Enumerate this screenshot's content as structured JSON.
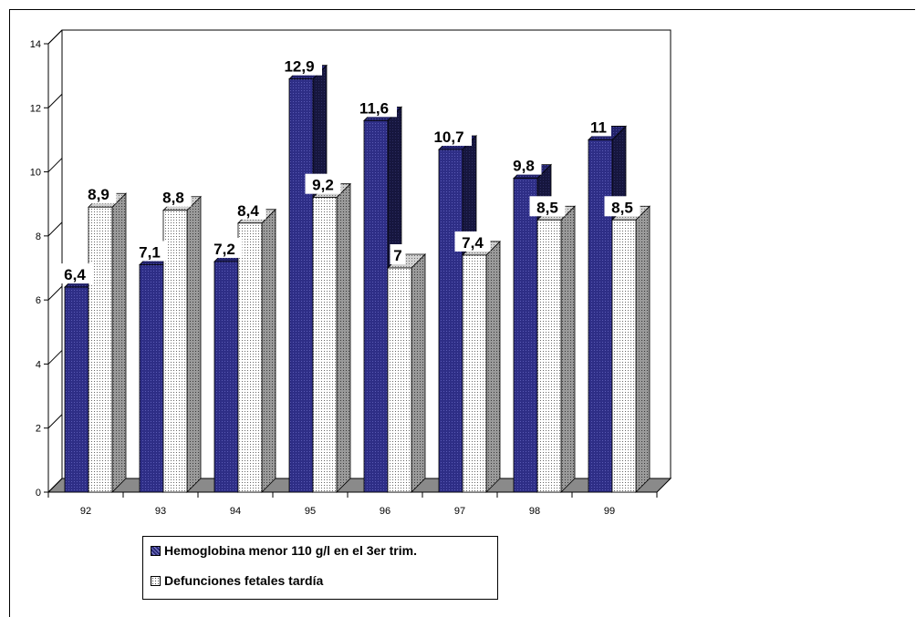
{
  "chart_data": {
    "type": "bar",
    "categories": [
      "92",
      "93",
      "94",
      "95",
      "96",
      "97",
      "98",
      "99"
    ],
    "series": [
      {
        "name": "Hemoglobina menor 110 g/l en el 3er trim.",
        "values": [
          6.4,
          7.1,
          7.2,
          12.9,
          11.6,
          10.7,
          9.8,
          11
        ],
        "labels": [
          "6,4",
          "7,1",
          "7,2",
          "12,9",
          "11,6",
          "10,7",
          "9,8",
          "11"
        ],
        "color": "#2e2e86"
      },
      {
        "name": "Defunciones fetales tardía",
        "values": [
          8.9,
          8.8,
          8.4,
          9.2,
          7,
          7.4,
          8.5,
          8.5
        ],
        "labels": [
          "8,9",
          "8,8",
          "8,4",
          "9,2",
          "7",
          "7,4",
          "8,5",
          "8,5"
        ],
        "color": "#ffffff"
      }
    ],
    "yticks": [
      "0",
      "2",
      "4",
      "6",
      "8",
      "10",
      "12",
      "14"
    ],
    "ylim": [
      0,
      14
    ],
    "grid": false,
    "legend": "bottom-left",
    "style": "3d clustered columns"
  },
  "legend": {
    "series1_label": "Hemoglobina menor 110 g/l en el 3er trim.",
    "series2_label": "Defunciones fetales tardía"
  }
}
